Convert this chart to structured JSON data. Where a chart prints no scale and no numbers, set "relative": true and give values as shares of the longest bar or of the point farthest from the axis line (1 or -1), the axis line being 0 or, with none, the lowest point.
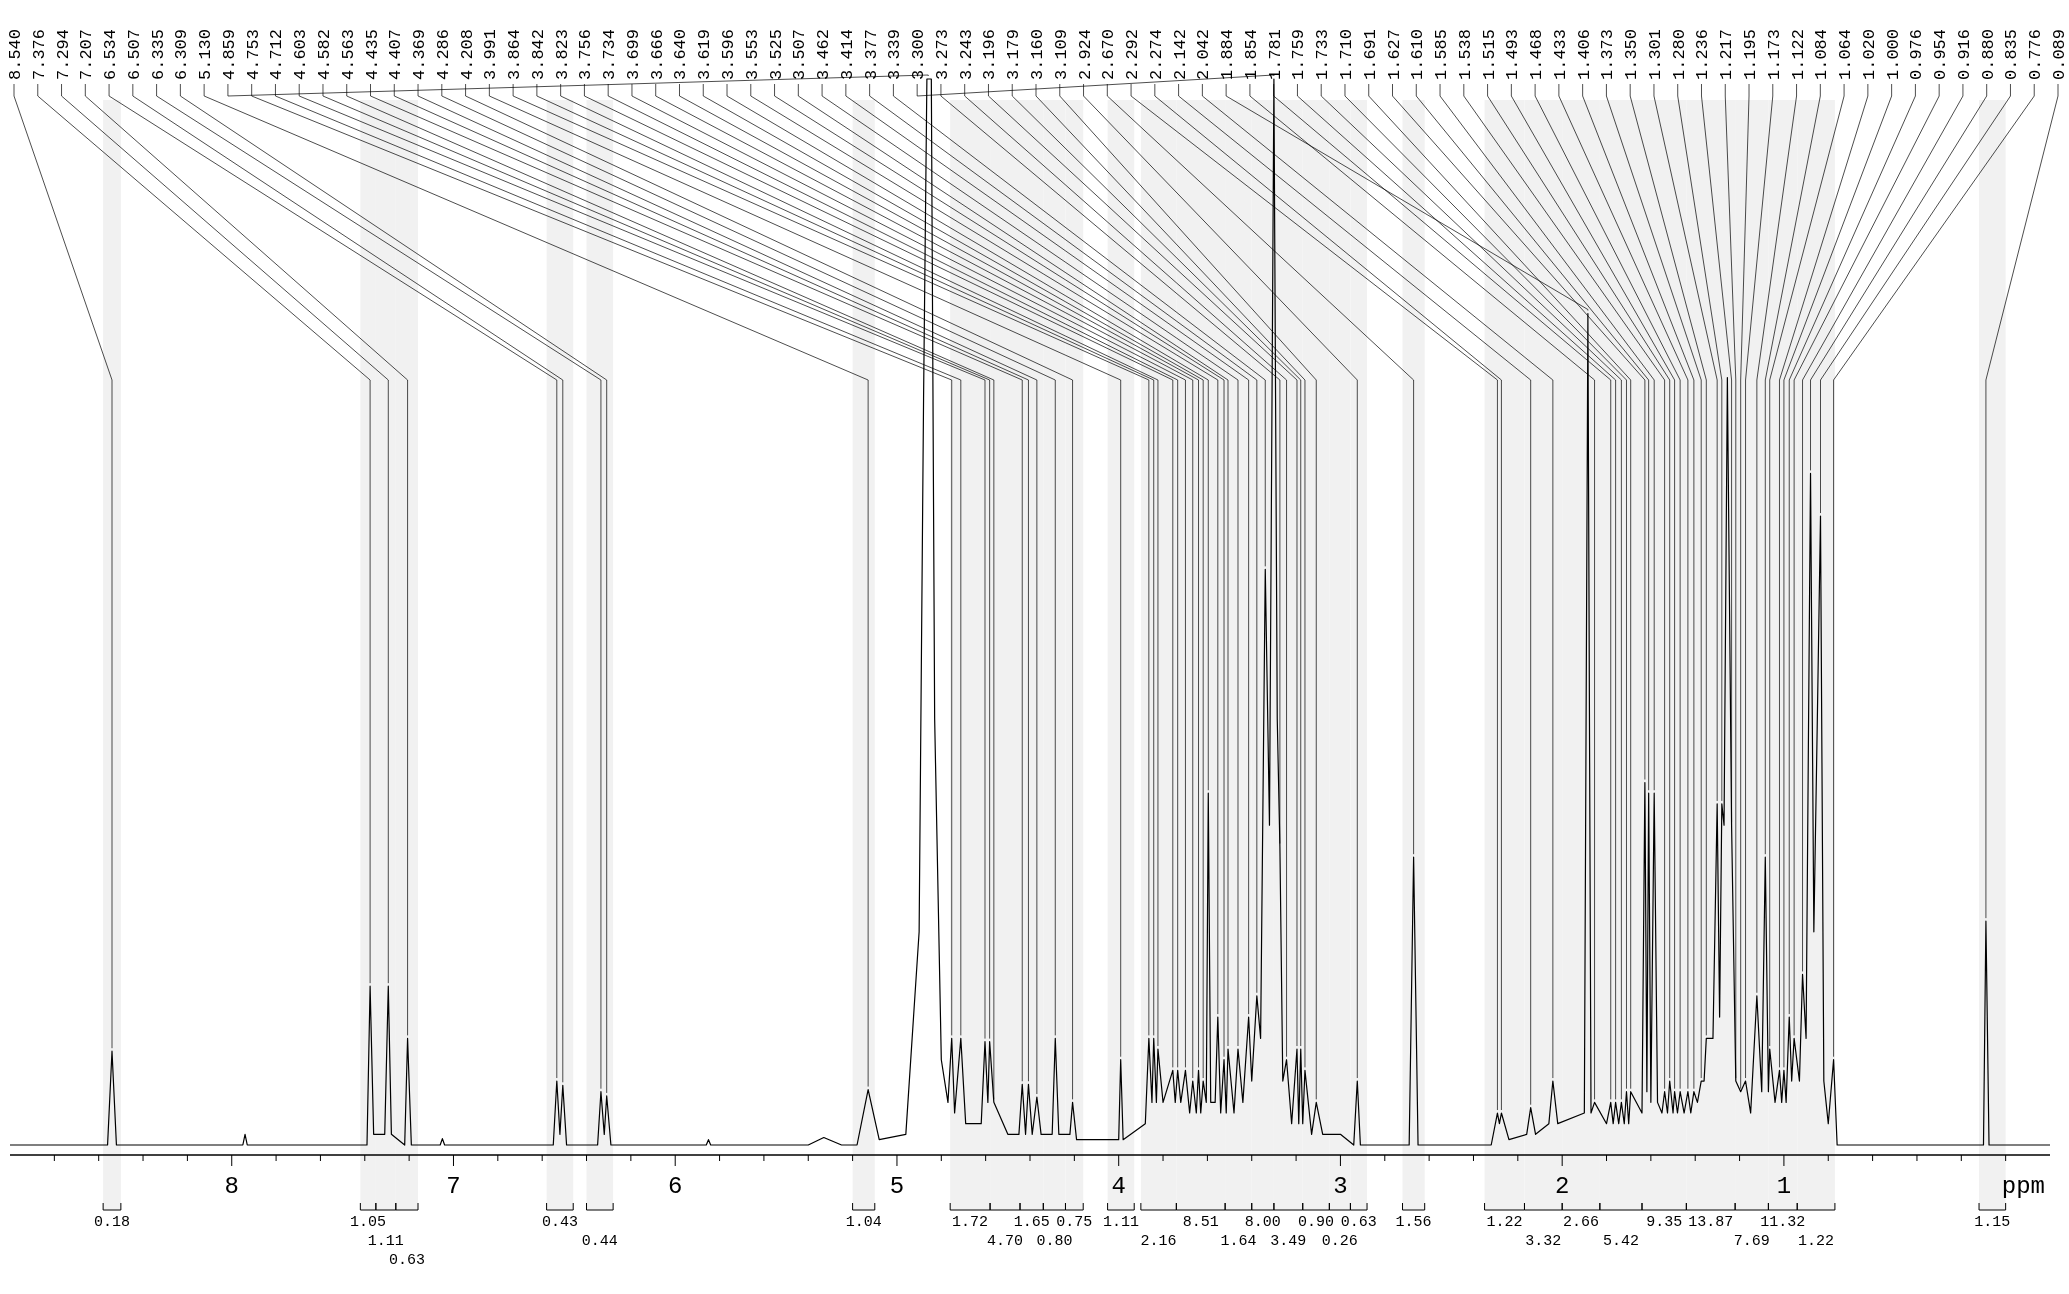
{
  "chart_data": {
    "type": "line",
    "relative": true,
    "xlabel": "ppm",
    "xlim": [
      9.0,
      -0.2
    ],
    "xticks": [
      {
        "value": 8.8,
        "label": null
      },
      {
        "value": 8.6,
        "label": null
      },
      {
        "value": 8.4,
        "label": null
      },
      {
        "value": 8.2,
        "label": null
      },
      8,
      {
        "value": 7.8,
        "label": null
      },
      {
        "value": 7.6,
        "label": null
      },
      {
        "value": 7.4,
        "label": null
      },
      {
        "value": 7.2,
        "label": null
      },
      7,
      {
        "value": 6.8,
        "label": null
      },
      {
        "value": 6.6,
        "label": null
      },
      {
        "value": 6.4,
        "label": null
      },
      {
        "value": 6.2,
        "label": null
      },
      6,
      {
        "value": 5.8,
        "label": null
      },
      {
        "value": 5.6,
        "label": null
      },
      {
        "value": 5.4,
        "label": null
      },
      {
        "value": 5.2,
        "label": null
      },
      5,
      {
        "value": 4.8,
        "label": null
      },
      {
        "value": 4.6,
        "label": null
      },
      {
        "value": 4.4,
        "label": null
      },
      {
        "value": 4.2,
        "label": null
      },
      4,
      {
        "value": 3.8,
        "label": null
      },
      {
        "value": 3.6,
        "label": null
      },
      {
        "value": 3.4,
        "label": null
      },
      {
        "value": 3.2,
        "label": null
      },
      3,
      {
        "value": 2.8,
        "label": null
      },
      {
        "value": 2.6,
        "label": null
      },
      {
        "value": 2.4,
        "label": null
      },
      {
        "value": 2.2,
        "label": null
      },
      2,
      {
        "value": 1.8,
        "label": null
      },
      {
        "value": 1.6,
        "label": null
      },
      {
        "value": 1.4,
        "label": null
      },
      {
        "value": 1.2,
        "label": null
      },
      1,
      {
        "value": 0.8,
        "label": null
      },
      {
        "value": 0.6,
        "label": null
      },
      {
        "value": 0.4,
        "label": null
      },
      {
        "value": 0.2,
        "label": null
      },
      {
        "value": 0,
        "label": null
      }
    ],
    "series": [
      {
        "color": "#000000",
        "x": [
          9.0,
          8.56,
          8.54,
          8.52,
          7.95,
          7.94,
          7.93,
          7.39,
          7.376,
          7.36,
          7.31,
          7.294,
          7.28,
          7.22,
          7.207,
          7.19,
          7.06,
          7.05,
          7.04,
          6.55,
          6.534,
          6.52,
          6.507,
          6.49,
          6.35,
          6.335,
          6.32,
          6.309,
          6.29,
          5.86,
          5.85,
          5.84,
          5.4,
          5.33,
          5.25,
          5.18,
          5.13,
          5.08,
          4.96,
          4.9,
          4.88,
          4.865,
          4.859,
          4.845,
          4.83,
          4.8,
          4.77,
          4.753,
          4.74,
          4.712,
          4.69,
          4.62,
          4.603,
          4.59,
          4.582,
          4.563,
          4.5,
          4.45,
          4.435,
          4.42,
          4.407,
          4.39,
          4.369,
          4.35,
          4.3,
          4.286,
          4.27,
          4.22,
          4.208,
          4.19,
          4.0,
          3.991,
          3.98,
          3.88,
          3.864,
          3.85,
          3.842,
          3.83,
          3.823,
          3.8,
          3.756,
          3.745,
          3.734,
          3.72,
          3.699,
          3.68,
          3.666,
          3.65,
          3.64,
          3.63,
          3.619,
          3.605,
          3.596,
          3.585,
          3.565,
          3.553,
          3.54,
          3.525,
          3.515,
          3.507,
          3.48,
          3.462,
          3.44,
          3.414,
          3.4,
          3.377,
          3.36,
          3.339,
          3.32,
          3.3,
          3.285,
          3.273,
          3.26,
          3.243,
          3.22,
          3.196,
          3.188,
          3.179,
          3.17,
          3.16,
          3.13,
          3.109,
          3.08,
          3.0,
          2.94,
          2.924,
          2.91,
          2.69,
          2.67,
          2.65,
          2.32,
          2.292,
          2.283,
          2.274,
          2.24,
          2.16,
          2.142,
          2.12,
          2.06,
          2.042,
          2.02,
          1.9,
          1.884,
          1.87,
          1.854,
          1.8,
          1.781,
          1.77,
          1.759,
          1.745,
          1.733,
          1.72,
          1.71,
          1.7,
          1.691,
          1.64,
          1.627,
          1.618,
          1.61,
          1.6,
          1.585,
          1.57,
          1.55,
          1.538,
          1.525,
          1.515,
          1.5,
          1.493,
          1.48,
          1.468,
          1.45,
          1.433,
          1.42,
          1.406,
          1.39,
          1.373,
          1.36,
          1.35,
          1.32,
          1.301,
          1.29,
          1.28,
          1.27,
          1.255,
          1.236,
          1.217,
          1.195,
          1.173,
          1.15,
          1.122,
          1.1,
          1.084,
          1.07,
          1.064,
          1.04,
          1.02,
          1.01,
          1.0,
          0.99,
          0.976,
          0.965,
          0.954,
          0.93,
          0.916,
          0.9,
          0.88,
          0.865,
          0.85,
          0.835,
          0.82,
          0.8,
          0.776,
          0.76,
          0.6,
          0.1,
          0.089,
          0.075,
          -0.2
        ],
        "values": [
          0,
          0,
          0.088,
          0,
          0,
          0.01,
          0,
          0,
          0.149,
          0.01,
          0.01,
          0.149,
          0.01,
          0,
          0.1,
          0,
          0,
          0.006,
          0,
          0,
          0.06,
          0.01,
          0.056,
          0,
          0,
          0.05,
          0.01,
          0.046,
          0,
          0,
          0.005,
          0,
          0,
          0.007,
          0,
          0,
          0.052,
          0.005,
          0.01,
          0.2,
          0.7,
          1.0,
          1.0,
          1.0,
          0.4,
          0.08,
          0.04,
          0.1,
          0.03,
          0.1,
          0.02,
          0.02,
          0.097,
          0.04,
          0.097,
          0.04,
          0.01,
          0.01,
          0.057,
          0.01,
          0.057,
          0.01,
          0.045,
          0.01,
          0.01,
          0.1,
          0.01,
          0.01,
          0.04,
          0.005,
          0.005,
          0.08,
          0.005,
          0.02,
          0.1,
          0.04,
          0.1,
          0.04,
          0.09,
          0.04,
          0.07,
          0.04,
          0.07,
          0.04,
          0.07,
          0.03,
          0.06,
          0.03,
          0.07,
          0.03,
          0.06,
          0.04,
          0.33,
          0.04,
          0.04,
          0.12,
          0.03,
          0.08,
          0.03,
          0.09,
          0.03,
          0.09,
          0.04,
          0.12,
          0.06,
          0.14,
          0.1,
          0.54,
          0.3,
          1.0,
          0.4,
          0.28,
          0.06,
          0.08,
          0.02,
          0.09,
          0.02,
          0.09,
          0.02,
          0.07,
          0.01,
          0.04,
          0.01,
          0.01,
          0,
          0.06,
          0,
          0,
          0.27,
          0,
          0,
          0.03,
          0.02,
          0.03,
          0.005,
          0.01,
          0.035,
          0.01,
          0.02,
          0.06,
          0.02,
          0.03,
          0.78,
          0.03,
          0.04,
          0.02,
          0.04,
          0.02,
          0.04,
          0.02,
          0.04,
          0.02,
          0.05,
          0.02,
          0.05,
          0.03,
          0.34,
          0.05,
          0.33,
          0.04,
          0.33,
          0.04,
          0.03,
          0.05,
          0.03,
          0.06,
          0.03,
          0.05,
          0.03,
          0.05,
          0.03,
          0.05,
          0.03,
          0.05,
          0.04,
          0.06,
          0.06,
          0.1,
          0.1,
          0.32,
          0.12,
          0.32,
          0.3,
          0.72,
          0.3,
          0.06,
          0.05,
          0.06,
          0.03,
          0.14,
          0.05,
          0.27,
          0.05,
          0.09,
          0.04,
          0.07,
          0.04,
          0.07,
          0.04,
          0.12,
          0.06,
          0.1,
          0.06,
          0.16,
          0.1,
          0.63,
          0.2,
          0.39,
          0.59,
          0.06,
          0.02,
          0.08,
          0,
          0,
          0,
          0.21,
          0,
          0
        ]
      }
    ],
    "annotations": [
      {
        "text": "8.540",
        "x": 8.54,
        "y": 0.088
      },
      {
        "text": "7.376",
        "x": 7.376,
        "y": 0.149
      },
      {
        "text": "7.294",
        "x": 7.294,
        "y": 0.149
      },
      {
        "text": "7.207",
        "x": 7.207,
        "y": 0.1
      },
      {
        "text": "6.534",
        "x": 6.534,
        "y": 0.06
      },
      {
        "text": "6.507",
        "x": 6.507,
        "y": 0.056
      },
      {
        "text": "6.335",
        "x": 6.335,
        "y": 0.05
      },
      {
        "text": "6.309",
        "x": 6.309,
        "y": 0.046
      },
      {
        "text": "5.130",
        "x": 5.13,
        "y": 0.052
      },
      {
        "text": "4.859",
        "x": 4.859,
        "y": 1.0
      },
      {
        "text": "4.753",
        "x": 4.753,
        "y": 0.1
      },
      {
        "text": "4.712",
        "x": 4.712,
        "y": 0.1
      },
      {
        "text": "4.603",
        "x": 4.603,
        "y": 0.097
      },
      {
        "text": "4.582",
        "x": 4.582,
        "y": 0.097
      },
      {
        "text": "4.563",
        "x": 4.563,
        "y": 0.04
      },
      {
        "text": "4.435",
        "x": 4.435,
        "y": 0.057
      },
      {
        "text": "4.407",
        "x": 4.407,
        "y": 0.057
      },
      {
        "text": "4.369",
        "x": 4.369,
        "y": 0.045
      },
      {
        "text": "4.286",
        "x": 4.286,
        "y": 0.1
      },
      {
        "text": "4.208",
        "x": 4.208,
        "y": 0.04
      },
      {
        "text": "3.991",
        "x": 3.991,
        "y": 0.08
      },
      {
        "text": "3.864",
        "x": 3.864,
        "y": 0.1
      },
      {
        "text": "3.842",
        "x": 3.842,
        "y": 0.1
      },
      {
        "text": "3.823",
        "x": 3.823,
        "y": 0.09
      },
      {
        "text": "3.756",
        "x": 3.756,
        "y": 0.07
      },
      {
        "text": "3.734",
        "x": 3.734,
        "y": 0.07
      },
      {
        "text": "3.699",
        "x": 3.699,
        "y": 0.07
      },
      {
        "text": "3.666",
        "x": 3.666,
        "y": 0.06
      },
      {
        "text": "3.640",
        "x": 3.64,
        "y": 0.07
      },
      {
        "text": "3.619",
        "x": 3.619,
        "y": 0.06
      },
      {
        "text": "3.596",
        "x": 3.596,
        "y": 0.33
      },
      {
        "text": "3.553",
        "x": 3.553,
        "y": 0.12
      },
      {
        "text": "3.525",
        "x": 3.525,
        "y": 0.08
      },
      {
        "text": "3.507",
        "x": 3.507,
        "y": 0.09
      },
      {
        "text": "3.462",
        "x": 3.462,
        "y": 0.09
      },
      {
        "text": "3.414",
        "x": 3.414,
        "y": 0.12
      },
      {
        "text": "3.377",
        "x": 3.377,
        "y": 0.14
      },
      {
        "text": "3.339",
        "x": 3.339,
        "y": 0.54
      },
      {
        "text": "3.300",
        "x": 3.3,
        "y": 1.0
      },
      {
        "text": "3.273",
        "x": 3.273,
        "y": 0.28
      },
      {
        "text": "3.243",
        "x": 3.243,
        "y": 0.08
      },
      {
        "text": "3.196",
        "x": 3.196,
        "y": 0.09
      },
      {
        "text": "3.179",
        "x": 3.179,
        "y": 0.09
      },
      {
        "text": "3.160",
        "x": 3.16,
        "y": 0.07
      },
      {
        "text": "3.109",
        "x": 3.109,
        "y": 0.04
      },
      {
        "text": "2.924",
        "x": 2.924,
        "y": 0.06
      },
      {
        "text": "2.670",
        "x": 2.67,
        "y": 0.27
      },
      {
        "text": "2.292",
        "x": 2.292,
        "y": 0.03
      },
      {
        "text": "2.274",
        "x": 2.274,
        "y": 0.03
      },
      {
        "text": "2.142",
        "x": 2.142,
        "y": 0.035
      },
      {
        "text": "2.042",
        "x": 2.042,
        "y": 0.06
      },
      {
        "text": "1.884",
        "x": 1.884,
        "y": 0.78
      },
      {
        "text": "1.854",
        "x": 1.854,
        "y": 0.04
      },
      {
        "text": "1.781",
        "x": 1.781,
        "y": 0.04
      },
      {
        "text": "1.759",
        "x": 1.759,
        "y": 0.04
      },
      {
        "text": "1.733",
        "x": 1.733,
        "y": 0.04
      },
      {
        "text": "1.710",
        "x": 1.71,
        "y": 0.05
      },
      {
        "text": "1.691",
        "x": 1.691,
        "y": 0.05
      },
      {
        "text": "1.627",
        "x": 1.627,
        "y": 0.34
      },
      {
        "text": "1.610",
        "x": 1.61,
        "y": 0.33
      },
      {
        "text": "1.585",
        "x": 1.585,
        "y": 0.33
      },
      {
        "text": "1.538",
        "x": 1.538,
        "y": 0.05
      },
      {
        "text": "1.515",
        "x": 1.515,
        "y": 0.06
      },
      {
        "text": "1.493",
        "x": 1.493,
        "y": 0.05
      },
      {
        "text": "1.468",
        "x": 1.468,
        "y": 0.05
      },
      {
        "text": "1.433",
        "x": 1.433,
        "y": 0.05
      },
      {
        "text": "1.406",
        "x": 1.406,
        "y": 0.05
      },
      {
        "text": "1.373",
        "x": 1.373,
        "y": 0.06
      },
      {
        "text": "1.350",
        "x": 1.35,
        "y": 0.1
      },
      {
        "text": "1.301",
        "x": 1.301,
        "y": 0.32
      },
      {
        "text": "1.280",
        "x": 1.28,
        "y": 0.32
      },
      {
        "text": "1.236",
        "x": 1.236,
        "y": 0.3
      },
      {
        "text": "1.217",
        "x": 1.217,
        "y": 0.06
      },
      {
        "text": "1.195",
        "x": 1.195,
        "y": 0.05
      },
      {
        "text": "1.173",
        "x": 1.173,
        "y": 0.06
      },
      {
        "text": "1.122",
        "x": 1.122,
        "y": 0.14
      },
      {
        "text": "1.084",
        "x": 1.084,
        "y": 0.27
      },
      {
        "text": "1.064",
        "x": 1.064,
        "y": 0.09
      },
      {
        "text": "1.020",
        "x": 1.02,
        "y": 0.07
      },
      {
        "text": "1.000",
        "x": 1.0,
        "y": 0.07
      },
      {
        "text": "0.976",
        "x": 0.976,
        "y": 0.12
      },
      {
        "text": "0.954",
        "x": 0.954,
        "y": 0.1
      },
      {
        "text": "0.916",
        "x": 0.916,
        "y": 0.16
      },
      {
        "text": "0.880",
        "x": 0.88,
        "y": 0.63
      },
      {
        "text": "0.835",
        "x": 0.835,
        "y": 0.59
      },
      {
        "text": "0.776",
        "x": 0.776,
        "y": 0.08
      },
      {
        "text": "0.089",
        "x": 0.089,
        "y": 0.21
      }
    ],
    "bands": [
      {
        "axis": "x",
        "from": 8.58,
        "to": 8.5,
        "label": "0.18"
      },
      {
        "axis": "x",
        "from": 7.42,
        "to": 7.35,
        "label": "1.05"
      },
      {
        "axis": "x",
        "from": 7.35,
        "to": 7.26,
        "label": "1.11"
      },
      {
        "axis": "x",
        "from": 7.26,
        "to": 7.16,
        "label": "0.63"
      },
      {
        "axis": "x",
        "from": 6.58,
        "to": 6.46,
        "label": "0.43"
      },
      {
        "axis": "x",
        "from": 6.4,
        "to": 6.28,
        "label": "0.44"
      },
      {
        "axis": "x",
        "from": 5.2,
        "to": 5.1,
        "label": "1.04"
      },
      {
        "axis": "x",
        "from": 4.76,
        "to": 4.58,
        "label": "1.72"
      },
      {
        "axis": "x",
        "from": 4.58,
        "to": 4.445,
        "label": "4.70"
      },
      {
        "axis": "x",
        "from": 4.445,
        "to": 4.34,
        "label": "1.65"
      },
      {
        "axis": "x",
        "from": 4.34,
        "to": 4.24,
        "label": "0.80"
      },
      {
        "axis": "x",
        "from": 4.24,
        "to": 4.16,
        "label": "0.75"
      },
      {
        "axis": "x",
        "from": 4.05,
        "to": 3.93,
        "label": "1.11"
      },
      {
        "axis": "x",
        "from": 3.9,
        "to": 3.74,
        "label": "2.16"
      },
      {
        "axis": "x",
        "from": 3.74,
        "to": 3.52,
        "label": "8.51"
      },
      {
        "axis": "x",
        "from": 3.52,
        "to": 3.4,
        "label": "1.64"
      },
      {
        "axis": "x",
        "from": 3.4,
        "to": 3.3,
        "label": "8.00"
      },
      {
        "axis": "x",
        "from": 3.3,
        "to": 3.17,
        "label": "3.49"
      },
      {
        "axis": "x",
        "from": 3.17,
        "to": 3.05,
        "label": "0.90"
      },
      {
        "axis": "x",
        "from": 3.05,
        "to": 2.955,
        "label": "0.26"
      },
      {
        "axis": "x",
        "from": 2.955,
        "to": 2.88,
        "label": "0.63"
      },
      {
        "axis": "x",
        "from": 2.72,
        "to": 2.62,
        "label": "1.56"
      },
      {
        "axis": "x",
        "from": 2.35,
        "to": 2.17,
        "label": "1.22"
      },
      {
        "axis": "x",
        "from": 2.17,
        "to": 2.0,
        "label": "3.32"
      },
      {
        "axis": "x",
        "from": 2.0,
        "to": 1.83,
        "label": "2.66"
      },
      {
        "axis": "x",
        "from": 1.83,
        "to": 1.64,
        "label": "5.42"
      },
      {
        "axis": "x",
        "from": 1.64,
        "to": 1.44,
        "label": "9.35"
      },
      {
        "axis": "x",
        "from": 1.44,
        "to": 1.22,
        "label": "13.87"
      },
      {
        "axis": "x",
        "from": 1.22,
        "to": 1.07,
        "label": "7.69"
      },
      {
        "axis": "x",
        "from": 1.07,
        "to": 0.94,
        "label": "11.32"
      },
      {
        "axis": "x",
        "from": 0.94,
        "to": 0.77,
        "label": "1.22"
      },
      {
        "axis": "x",
        "from": 0.12,
        "to": 0.0,
        "label": "1.15"
      }
    ]
  }
}
